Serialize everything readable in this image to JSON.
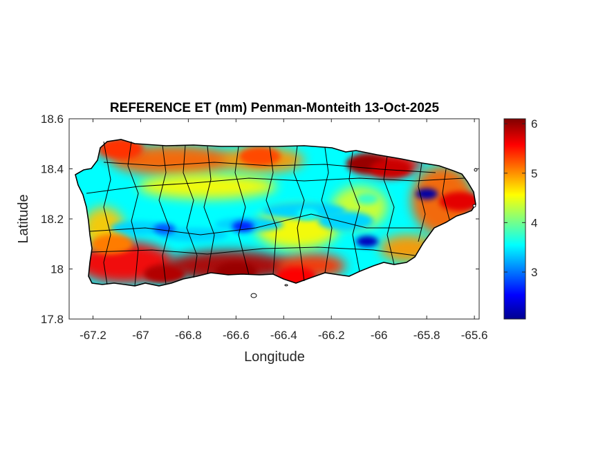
{
  "chart_data": {
    "type": "heatmap",
    "title": "REFERENCE ET (mm) Penman-Monteith 13-Oct-2025",
    "xlabel": "Longitude",
    "ylabel": "Latitude",
    "xlim": [
      -67.3,
      -65.58
    ],
    "ylim": [
      17.8,
      18.6
    ],
    "xticks": [
      -67.2,
      -67,
      -66.8,
      -66.6,
      -66.4,
      -66.2,
      -66,
      -65.8,
      -65.6
    ],
    "xtick_labels": [
      "-67.2",
      "-67",
      "-66.8",
      "-66.6",
      "-66.4",
      "-66.2",
      "-66",
      "-65.8",
      "-65.6"
    ],
    "yticks": [
      17.8,
      18,
      18.2,
      18.4,
      18.6
    ],
    "ytick_labels": [
      "17.8",
      "18",
      "18.2",
      "18.4",
      "18.6"
    ],
    "colorbar": {
      "colormap": "jet",
      "range": [
        2.05,
        6.1
      ],
      "ticks": [
        3,
        4,
        5,
        6
      ],
      "tick_labels": [
        "3",
        "4",
        "5",
        "6"
      ]
    },
    "grid": false,
    "region": "Puerto Rico",
    "hotspots": [
      {
        "lon": -66.6,
        "lat": 17.99,
        "value": 6.0
      },
      {
        "lon": -66.9,
        "lat": 17.98,
        "value": 5.9
      },
      {
        "lon": -66.05,
        "lat": 18.42,
        "value": 6.0
      },
      {
        "lon": -65.95,
        "lat": 18.4,
        "value": 5.8
      },
      {
        "lon": -65.66,
        "lat": 18.27,
        "value": 5.7
      },
      {
        "lon": -66.35,
        "lat": 17.97,
        "value": 5.6
      },
      {
        "lon": -67.08,
        "lat": 18.48,
        "value": 5.4
      },
      {
        "lon": -66.5,
        "lat": 18.45,
        "value": 5.3
      },
      {
        "lon": -67.12,
        "lat": 18.1,
        "value": 5.1
      }
    ],
    "coldspots": [
      {
        "lon": -65.8,
        "lat": 18.3,
        "value": 2.2
      },
      {
        "lon": -66.05,
        "lat": 18.11,
        "value": 2.3
      },
      {
        "lon": -66.57,
        "lat": 18.17,
        "value": 2.7
      },
      {
        "lon": -66.9,
        "lat": 18.16,
        "value": 2.9
      },
      {
        "lon": -66.3,
        "lat": 18.22,
        "value": 3.6
      },
      {
        "lon": -66.05,
        "lat": 18.28,
        "value": 3.8
      }
    ]
  }
}
